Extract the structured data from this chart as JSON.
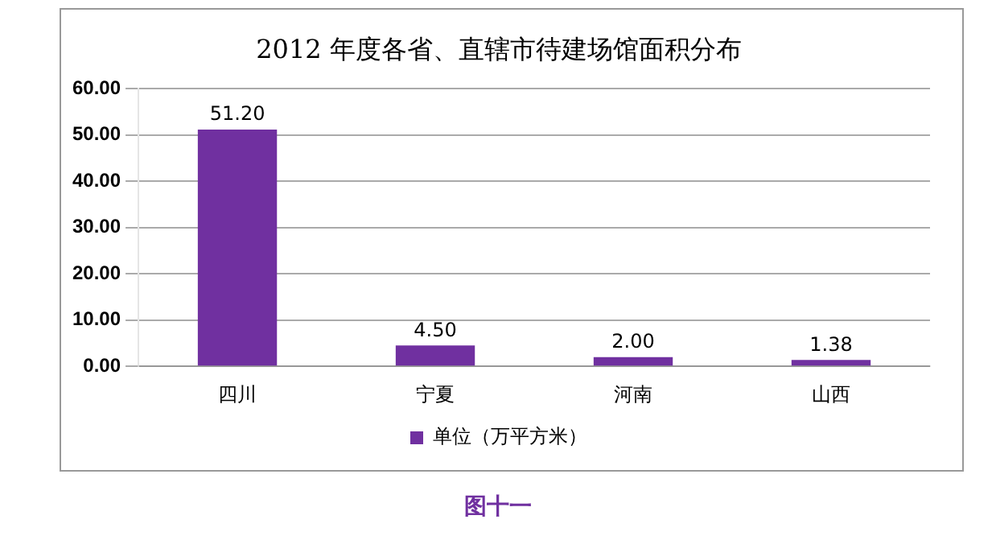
{
  "chart_data": {
    "type": "bar",
    "title": "2012 年度各省、直辖市待建场馆面积分布",
    "categories": [
      "四川",
      "宁夏",
      "河南",
      "山西"
    ],
    "series": [
      {
        "name": "单位（万平方米）",
        "color": "#7030a0",
        "values": [
          51.2,
          4.5,
          2.0,
          1.38
        ],
        "value_labels": [
          "51.20",
          "4.50",
          "2.00",
          "1.38"
        ]
      }
    ],
    "ylim": [
      0,
      60
    ],
    "yticks": [
      {
        "value": 0,
        "label": "0.00"
      },
      {
        "value": 10,
        "label": "10.00"
      },
      {
        "value": 20,
        "label": "20.00"
      },
      {
        "value": 30,
        "label": "30.00"
      },
      {
        "value": 40,
        "label": "40.00"
      },
      {
        "value": 50,
        "label": "50.00"
      },
      {
        "value": 60,
        "label": "60.00"
      }
    ],
    "grid": "y",
    "legend": "bottom",
    "annotations": [
      "图十一"
    ]
  }
}
